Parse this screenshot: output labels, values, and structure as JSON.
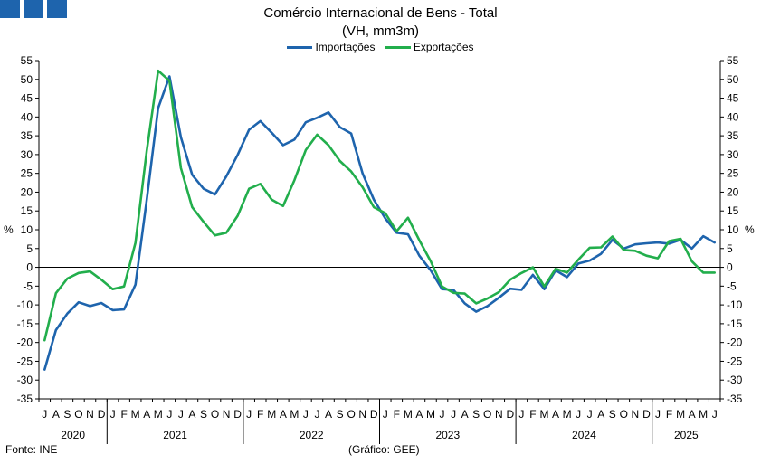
{
  "brand": {
    "color": "#1e64ad"
  },
  "header": {
    "title": "Comércio Internacional de Bens - Total",
    "subtitle": "(VH, mm3m)"
  },
  "footer": {
    "source": "Fonte: INE",
    "credit": "(Gráfico: GEE)"
  },
  "chart_data": {
    "type": "line",
    "title": "Comércio Internacional de Bens - Total",
    "subtitle": "(VH, mm3m)",
    "ylabel": "%",
    "ylim": [
      -35,
      55
    ],
    "yticks": [
      55,
      50,
      45,
      40,
      35,
      30,
      25,
      20,
      15,
      10,
      5,
      0,
      -5,
      -10,
      -15,
      -20,
      -25,
      -30,
      -35
    ],
    "y_axes": "left and right",
    "zero_line": true,
    "grid": false,
    "legend_position": "top-center",
    "x": [
      "2020-07",
      "2020-08",
      "2020-09",
      "2020-10",
      "2020-11",
      "2020-12",
      "2021-01",
      "2021-02",
      "2021-03",
      "2021-04",
      "2021-05",
      "2021-06",
      "2021-07",
      "2021-08",
      "2021-09",
      "2021-10",
      "2021-11",
      "2021-12",
      "2022-01",
      "2022-02",
      "2022-03",
      "2022-04",
      "2022-05",
      "2022-06",
      "2022-07",
      "2022-08",
      "2022-09",
      "2022-10",
      "2022-11",
      "2022-12",
      "2023-01",
      "2023-02",
      "2023-03",
      "2023-04",
      "2023-05",
      "2023-06",
      "2023-07",
      "2023-08",
      "2023-09",
      "2023-10",
      "2023-11",
      "2023-12",
      "2024-01",
      "2024-02",
      "2024-03",
      "2024-04",
      "2024-05",
      "2024-06",
      "2024-07",
      "2024-08",
      "2024-09",
      "2024-10",
      "2024-11",
      "2024-12",
      "2025-01",
      "2025-02",
      "2025-03",
      "2025-04",
      "2025-05",
      "2025-06"
    ],
    "month_labels": [
      "J",
      "A",
      "S",
      "O",
      "N",
      "D",
      "J",
      "F",
      "M",
      "A",
      "M",
      "J",
      "J",
      "A",
      "S",
      "O",
      "N",
      "D",
      "J",
      "F",
      "M",
      "A",
      "M",
      "J",
      "J",
      "A",
      "S",
      "O",
      "N",
      "D",
      "J",
      "F",
      "M",
      "A",
      "M",
      "J",
      "J",
      "A",
      "S",
      "O",
      "N",
      "D",
      "J",
      "F",
      "M",
      "A",
      "M",
      "J",
      "J",
      "A",
      "S",
      "O",
      "N",
      "D",
      "J",
      "F",
      "M",
      "A",
      "M",
      "J"
    ],
    "years": [
      {
        "label": "2020",
        "start": 0,
        "end": 5
      },
      {
        "label": "2021",
        "start": 6,
        "end": 17
      },
      {
        "label": "2022",
        "start": 18,
        "end": 29
      },
      {
        "label": "2023",
        "start": 30,
        "end": 41
      },
      {
        "label": "2024",
        "start": 42,
        "end": 53
      },
      {
        "label": "2025",
        "start": 54,
        "end": 59
      }
    ],
    "series": [
      {
        "name": "Importações",
        "color": "#1e64ad",
        "values": [
          -27.2,
          -16.7,
          -12.3,
          -9.3,
          -10.3,
          -9.5,
          -11.4,
          -11.2,
          -4.6,
          18.0,
          42.4,
          50.8,
          34.6,
          24.6,
          20.9,
          19.4,
          24.2,
          29.9,
          36.6,
          38.9,
          35.8,
          32.5,
          34.0,
          38.6,
          39.8,
          41.2,
          37.3,
          35.6,
          25.0,
          18.0,
          13.0,
          9.2,
          8.8,
          3.1,
          -0.8,
          -5.8,
          -6.0,
          -9.6,
          -11.8,
          -10.3,
          -8.1,
          -5.7,
          -6.0,
          -2.0,
          -5.8,
          -0.8,
          -2.6,
          1.0,
          1.8,
          3.6,
          7.3,
          5.0,
          6.1,
          6.4,
          6.6,
          6.3,
          7.3,
          5.0,
          8.3,
          6.6
        ]
      },
      {
        "name": "Exportações",
        "color": "#22ae4c",
        "values": [
          -19.4,
          -6.9,
          -3.0,
          -1.5,
          -1.1,
          -3.3,
          -5.8,
          -5.1,
          6.5,
          31.0,
          52.3,
          49.6,
          26.4,
          16.0,
          12.1,
          8.5,
          9.2,
          13.7,
          20.9,
          22.2,
          18.0,
          16.3,
          23.2,
          31.2,
          35.3,
          32.5,
          28.3,
          25.5,
          21.3,
          16.0,
          14.4,
          9.6,
          13.2,
          7.2,
          1.6,
          -5.1,
          -6.8,
          -7.0,
          -9.6,
          -8.3,
          -6.6,
          -3.3,
          -1.5,
          0.0,
          -5.1,
          -0.4,
          -1.4,
          2.0,
          5.2,
          5.3,
          8.2,
          4.6,
          4.4,
          3.1,
          2.4,
          7.0,
          7.6,
          1.6,
          -1.4,
          -1.4
        ]
      }
    ]
  }
}
